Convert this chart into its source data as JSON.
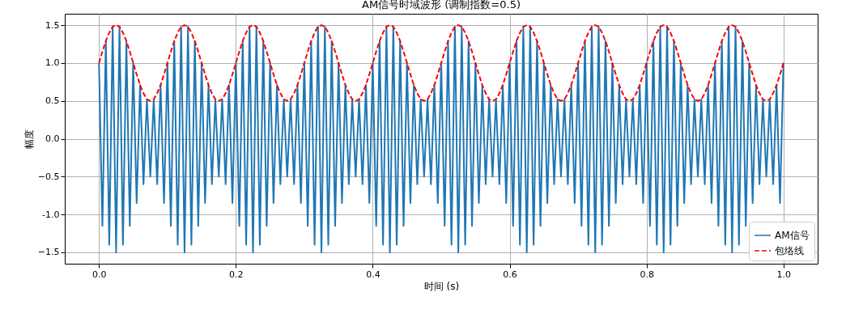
{
  "chart_data": {
    "type": "line",
    "title": "AM信号时域波形 (调制指数=0.5)",
    "xlabel": "时间 (s)",
    "ylabel": "幅度",
    "x": [
      0,
      0.005,
      0.01,
      0.015,
      0.02,
      0.025,
      0.03,
      0.035,
      0.04,
      0.045,
      0.05,
      0.055,
      0.06,
      0.065,
      0.07,
      0.075,
      0.08,
      0.085,
      0.09,
      0.095,
      0.1,
      0.105,
      0.11,
      0.115,
      0.12,
      0.125,
      0.13,
      0.135,
      0.14,
      0.145,
      0.15,
      0.155,
      0.16,
      0.165,
      0.17,
      0.175,
      0.18,
      0.185,
      0.19,
      0.195,
      0.2,
      0.205,
      0.21,
      0.215,
      0.22,
      0.225,
      0.23,
      0.235,
      0.24,
      0.245,
      0.25,
      0.255,
      0.26,
      0.265,
      0.27,
      0.275,
      0.28,
      0.285,
      0.29,
      0.295,
      0.3,
      0.305,
      0.31,
      0.315,
      0.32,
      0.325,
      0.33,
      0.335,
      0.34,
      0.345,
      0.35,
      0.355,
      0.36,
      0.365,
      0.37,
      0.375,
      0.38,
      0.385,
      0.39,
      0.395,
      0.4,
      0.405,
      0.41,
      0.415,
      0.42,
      0.425,
      0.43,
      0.435,
      0.44,
      0.445,
      0.45,
      0.455,
      0.46,
      0.465,
      0.47,
      0.475,
      0.48,
      0.485,
      0.49,
      0.495,
      0.5,
      0.505,
      0.51,
      0.515,
      0.52,
      0.525,
      0.53,
      0.535,
      0.54,
      0.545,
      0.55,
      0.555,
      0.56,
      0.565,
      0.57,
      0.575,
      0.58,
      0.585,
      0.59,
      0.595,
      0.6,
      0.605,
      0.61,
      0.615,
      0.62,
      0.625,
      0.63,
      0.635,
      0.64,
      0.645,
      0.65,
      0.655,
      0.66,
      0.665,
      0.67,
      0.675,
      0.68,
      0.685,
      0.69,
      0.695,
      0.7,
      0.705,
      0.71,
      0.715,
      0.72,
      0.725,
      0.73,
      0.735,
      0.74,
      0.745,
      0.75,
      0.755,
      0.76,
      0.765,
      0.77,
      0.775,
      0.78,
      0.785,
      0.79,
      0.795,
      0.8,
      0.805,
      0.81,
      0.815,
      0.82,
      0.825,
      0.83,
      0.835,
      0.84,
      0.845,
      0.85,
      0.855,
      0.86,
      0.865,
      0.87,
      0.875,
      0.88,
      0.885,
      0.89,
      0.895,
      0.9,
      0.905,
      0.91,
      0.915,
      0.92,
      0.925,
      0.93,
      0.935,
      0.94,
      0.945,
      0.95,
      0.955,
      0.96,
      0.965,
      0.97,
      0.975,
      0.98,
      0.985,
      0.99,
      0.995,
      1
    ],
    "series": [
      {
        "name": "AM信号",
        "color": "#1f77b4",
        "line_style": "solid",
        "values": [
          1,
          -1.15,
          1.29,
          -1.4,
          1.48,
          -1.5,
          1.48,
          -1.4,
          1.29,
          -1.15,
          1,
          -0.85,
          0.71,
          -0.6,
          0.52,
          -0.5,
          0.52,
          -0.6,
          0.71,
          -0.85,
          1,
          -1.15,
          1.29,
          -1.4,
          1.48,
          -1.5,
          1.48,
          -1.4,
          1.29,
          -1.15,
          1,
          -0.85,
          0.71,
          -0.6,
          0.52,
          -0.5,
          0.52,
          -0.6,
          0.71,
          -0.85,
          1,
          -1.15,
          1.29,
          -1.4,
          1.48,
          -1.5,
          1.48,
          -1.4,
          1.29,
          -1.15,
          1,
          -0.85,
          0.71,
          -0.6,
          0.52,
          -0.5,
          0.52,
          -0.6,
          0.71,
          -0.85,
          1,
          -1.15,
          1.29,
          -1.4,
          1.48,
          -1.5,
          1.48,
          -1.4,
          1.29,
          -1.15,
          1,
          -0.85,
          0.71,
          -0.6,
          0.52,
          -0.5,
          0.52,
          -0.6,
          0.71,
          -0.85,
          1,
          -1.15,
          1.29,
          -1.4,
          1.48,
          -1.5,
          1.48,
          -1.4,
          1.29,
          -1.15,
          1,
          -0.85,
          0.71,
          -0.6,
          0.52,
          -0.5,
          0.52,
          -0.6,
          0.71,
          -0.85,
          1,
          -1.15,
          1.29,
          -1.4,
          1.48,
          -1.5,
          1.48,
          -1.4,
          1.29,
          -1.15,
          1,
          -0.85,
          0.71,
          -0.6,
          0.52,
          -0.5,
          0.52,
          -0.6,
          0.71,
          -0.85,
          1,
          -1.15,
          1.29,
          -1.4,
          1.48,
          -1.5,
          1.48,
          -1.4,
          1.29,
          -1.15,
          1,
          -0.85,
          0.71,
          -0.6,
          0.52,
          -0.5,
          0.52,
          -0.6,
          0.71,
          -0.85,
          1,
          -1.15,
          1.29,
          -1.4,
          1.48,
          -1.5,
          1.48,
          -1.4,
          1.29,
          -1.15,
          1,
          -0.85,
          0.71,
          -0.6,
          0.52,
          -0.5,
          0.52,
          -0.6,
          0.71,
          -0.85,
          1,
          -1.15,
          1.29,
          -1.4,
          1.48,
          -1.5,
          1.48,
          -1.4,
          1.29,
          -1.15,
          1,
          -0.85,
          0.71,
          -0.6,
          0.52,
          -0.5,
          0.52,
          -0.6,
          0.71,
          -0.85,
          1,
          -1.15,
          1.29,
          -1.4,
          1.48,
          -1.5,
          1.48,
          -1.4,
          1.29,
          -1.15,
          1,
          -0.85,
          0.71,
          -0.6,
          0.52,
          -0.5,
          0.52,
          -0.6,
          0.71,
          -0.85,
          1
        ]
      },
      {
        "name": "包络线",
        "color": "#ff0000",
        "line_style": "dashed",
        "values": [
          1,
          1.15,
          1.29,
          1.4,
          1.48,
          1.5,
          1.48,
          1.4,
          1.29,
          1.15,
          1,
          0.85,
          0.71,
          0.6,
          0.52,
          0.5,
          0.52,
          0.6,
          0.71,
          0.85,
          1,
          1.15,
          1.29,
          1.4,
          1.48,
          1.5,
          1.48,
          1.4,
          1.29,
          1.15,
          1,
          0.85,
          0.71,
          0.6,
          0.52,
          0.5,
          0.52,
          0.6,
          0.71,
          0.85,
          1,
          1.15,
          1.29,
          1.4,
          1.48,
          1.5,
          1.48,
          1.4,
          1.29,
          1.15,
          1,
          0.85,
          0.71,
          0.6,
          0.52,
          0.5,
          0.52,
          0.6,
          0.71,
          0.85,
          1,
          1.15,
          1.29,
          1.4,
          1.48,
          1.5,
          1.48,
          1.4,
          1.29,
          1.15,
          1,
          0.85,
          0.71,
          0.6,
          0.52,
          0.5,
          0.52,
          0.6,
          0.71,
          0.85,
          1,
          1.15,
          1.29,
          1.4,
          1.48,
          1.5,
          1.48,
          1.4,
          1.29,
          1.15,
          1,
          0.85,
          0.71,
          0.6,
          0.52,
          0.5,
          0.52,
          0.6,
          0.71,
          0.85,
          1,
          1.15,
          1.29,
          1.4,
          1.48,
          1.5,
          1.48,
          1.4,
          1.29,
          1.15,
          1,
          0.85,
          0.71,
          0.6,
          0.52,
          0.5,
          0.52,
          0.6,
          0.71,
          0.85,
          1,
          1.15,
          1.29,
          1.4,
          1.48,
          1.5,
          1.48,
          1.4,
          1.29,
          1.15,
          1,
          0.85,
          0.71,
          0.6,
          0.52,
          0.5,
          0.52,
          0.6,
          0.71,
          0.85,
          1,
          1.15,
          1.29,
          1.4,
          1.48,
          1.5,
          1.48,
          1.4,
          1.29,
          1.15,
          1,
          0.85,
          0.71,
          0.6,
          0.52,
          0.5,
          0.52,
          0.6,
          0.71,
          0.85,
          1,
          1.15,
          1.29,
          1.4,
          1.48,
          1.5,
          1.48,
          1.4,
          1.29,
          1.15,
          1,
          0.85,
          0.71,
          0.6,
          0.52,
          0.5,
          0.52,
          0.6,
          0.71,
          0.85,
          1,
          1.15,
          1.29,
          1.4,
          1.48,
          1.5,
          1.48,
          1.4,
          1.29,
          1.15,
          1,
          0.85,
          0.71,
          0.6,
          0.52,
          0.5,
          0.52,
          0.6,
          0.71,
          0.85,
          1
        ]
      }
    ],
    "xlim": [
      -0.05,
      1.05
    ],
    "ylim": [
      -1.65,
      1.65
    ],
    "xticks": [
      {
        "value": 0,
        "label": "0.0"
      },
      0.2,
      0.4,
      0.6,
      0.8,
      {
        "value": 1,
        "label": "1.0"
      }
    ],
    "yticks": [
      -1.5,
      {
        "value": -1,
        "label": "-1.0"
      },
      -0.5,
      {
        "value": 0,
        "label": "0.0"
      },
      0.5,
      {
        "value": 1,
        "label": "1.0"
      },
      1.5
    ],
    "grid": true,
    "legend": "bottom right"
  }
}
